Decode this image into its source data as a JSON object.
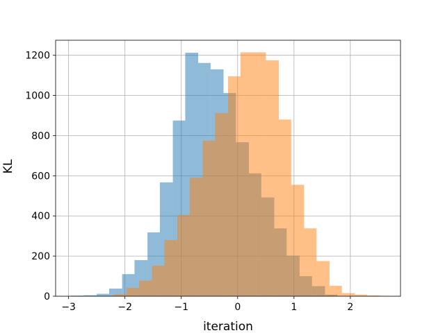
{
  "chart_data": {
    "type": "bar",
    "subtype": "overlapping-histogram",
    "title": "",
    "xlabel": "iteration",
    "ylabel": "KL",
    "xlim": [
      -3.23,
      2.89
    ],
    "ylim": [
      0,
      1275
    ],
    "xticks": [
      -3,
      -2,
      -1,
      0,
      1,
      2
    ],
    "yticks": [
      0,
      200,
      400,
      600,
      800,
      1000,
      1200
    ],
    "grid": true,
    "legend": "none",
    "series": [
      {
        "color": "#1f77b4",
        "alpha": 0.5,
        "bin_edges": [
          -2.95,
          -2.73,
          -2.5,
          -2.28,
          -2.05,
          -1.83,
          -1.6,
          -1.38,
          -1.15,
          -0.93,
          -0.7,
          -0.48,
          -0.25,
          -0.03,
          0.2,
          0.42,
          0.65,
          0.87,
          1.1,
          1.32,
          1.55,
          1.77
        ],
        "counts": [
          3,
          5,
          12,
          38,
          110,
          180,
          318,
          567,
          875,
          1213,
          1162,
          1130,
          1012,
          767,
          612,
          492,
          338,
          202,
          100,
          50,
          8
        ]
      },
      {
        "color": "#ff7f0e",
        "alpha": 0.5,
        "bin_edges": [
          -2.2,
          -1.97,
          -1.75,
          -1.52,
          -1.3,
          -1.07,
          -0.85,
          -0.62,
          -0.4,
          -0.17,
          0.05,
          0.28,
          0.5,
          0.73,
          0.95,
          1.18,
          1.4,
          1.63,
          1.85,
          2.08,
          2.3,
          2.53,
          2.66
        ],
        "counts": [
          10,
          42,
          78,
          152,
          280,
          405,
          590,
          775,
          912,
          1095,
          1215,
          1215,
          1175,
          880,
          555,
          338,
          175,
          52,
          15,
          8,
          4,
          2
        ]
      }
    ]
  }
}
